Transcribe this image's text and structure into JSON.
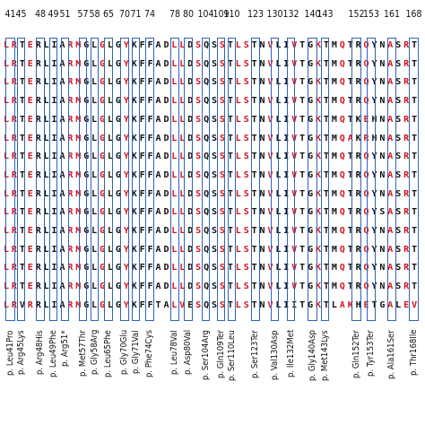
{
  "positions": [
    "41",
    "45",
    "48",
    "49",
    "51",
    "57",
    "58",
    "65",
    "70",
    "71",
    "74",
    "78",
    "80",
    "104",
    "109",
    "110",
    "123",
    "130",
    "132",
    "140",
    "143",
    "152",
    "153",
    "161",
    "168"
  ],
  "rows": [
    "LRTERLIARMGLGLGYKFFADLLDSQSSTLSTNVLIVTGKTMQTRQYNASRT",
    "LRTERLIARMGLGLGYKFFADLLDSQSSTLSTNVLIVTGKTMQTRQYNASRT",
    "LRTERLIARMGLGLGYKFFADLLDSQSSTLSTNVLIVTGKTMQTRQYNASRT",
    "LRTERLIARMGLGLGYKFFADLLDSQSSTLSTNVLIVTGKTMQTRQYNASRT",
    "LRTERLIARMGLGLGYKFFADLLDSQSSTLSTNVLIVTGKTMQTKEHNASRT",
    "LRTERLIARMGLGLGYKFFADLLDSQSSTLSTNVLIVTGKTMQAKRHNASRT",
    "LRTERLIARMGLGLGYKFFADLLDSQSSTLSTNVLIVTGKTMQTRQYNASRT",
    "LRTERLIARMGLGLGYKFFADLLDSQSSTLSTNVLIVTGKTMQTRQYNASRT",
    "LRTERLIARMGLGLGYKFFADLLDSQSSTLSTNVLIVTGKTMQTRQYNASRT",
    "LRTERLIARMGLGLGYKFFADLLDSQSSTLSTNVLIVTGKTMQTRQYSASRT",
    "LRTERLIARMGLGLGYKFFADLLDSQSSTLSTNVLIVTGKTMQTRQYNASRT",
    "LRTERLIARMGLGLGYKFFADLLDSQSSTLSTNVLIVTGKTMQTRQYNASRT",
    "LRTERLIARMGLGLGYKFFADLLDSQSSTLSTNVLIVTGKTMQTRQYNASRT",
    "LRTERLIARMGLGLGYKFFADLLDSQSSTLSTNVLIVTGKTMQTRQYNASRT",
    "LRVRRLIARMGLGLGYKFFTALVESQSSTLSTNVLIITGKTLAKHETGALEV"
  ],
  "mutations": [
    "p. Leu41Pro",
    "p. Arg45Lys",
    "p. Arg48His",
    "p. Leu49Phe",
    "p. Arg51*",
    "p. Met57Thr",
    "p. Gly58Arg",
    "p. Leu65Phe",
    "p. Gly70Glu",
    "p. Gly71Val",
    "p. Phe74Cys",
    "p. Leu78Val",
    "p. Asp80Val",
    "p. Ser104Arg",
    "p. Gln109Ter",
    "p. Ser110Leu",
    "p. Ser123Ter",
    "p. Val130Asp",
    "p. Ile132Met",
    "p. Gly140Asp",
    "p. Met143Lys",
    "p. Gln152Ter",
    "p. Tyr153Ter",
    "p. Ala161Ser",
    "p. Thr168Ile"
  ],
  "colors": {
    "residue_highlight": "#d4141e",
    "box_border": "#2f63b8"
  }
}
